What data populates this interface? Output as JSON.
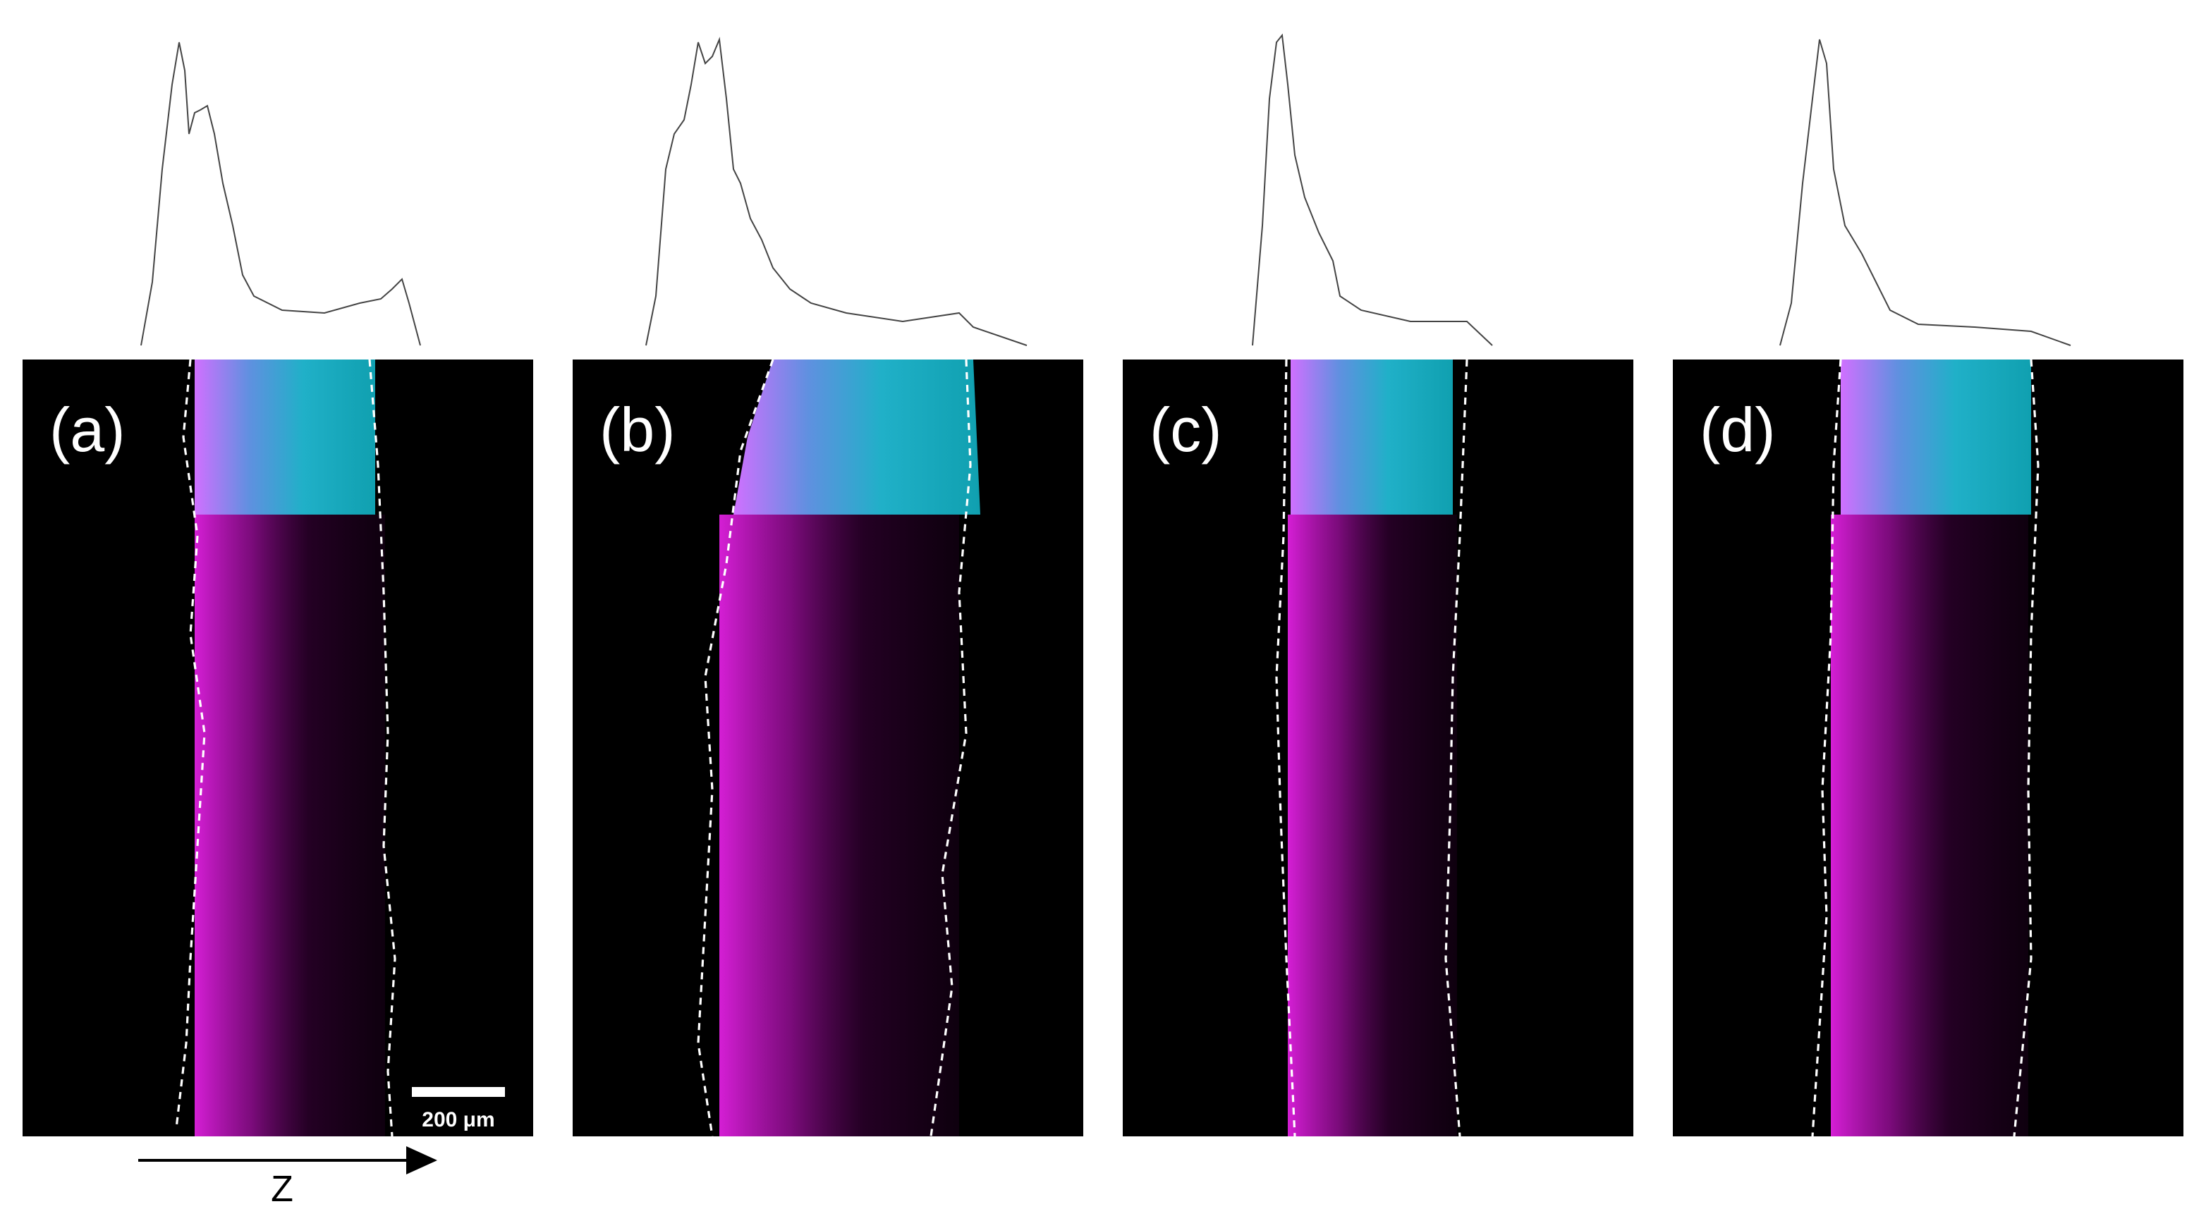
{
  "panels": [
    {
      "label": "(a)"
    },
    {
      "label": "(b)"
    },
    {
      "label": "(c)"
    },
    {
      "label": "(d)"
    }
  ],
  "scale_bar": "200 μm",
  "axis_label": "Z"
}
